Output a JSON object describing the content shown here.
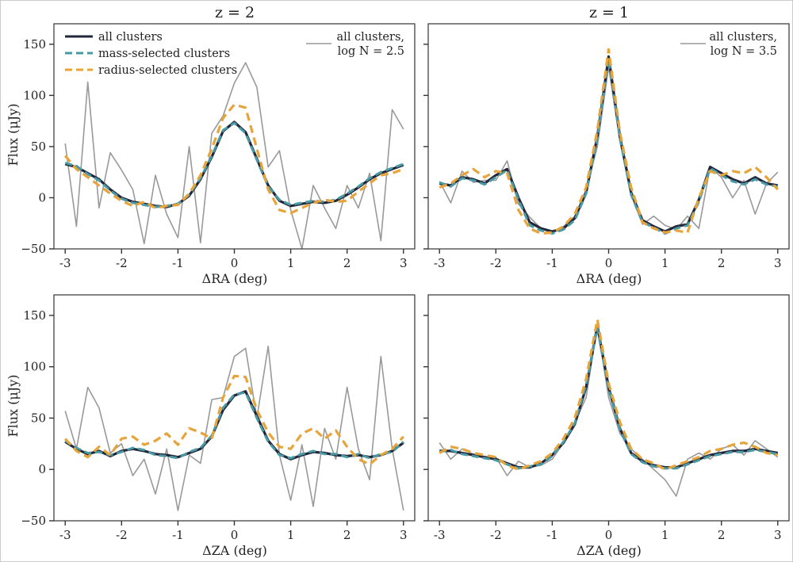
{
  "chart_data": {
    "type": "line",
    "figure_titles": [
      "z = 2",
      "z = 1"
    ],
    "legend": {
      "all": "all clusters",
      "mass": "mass-selected clusters",
      "radius": "radius-selected clusters"
    },
    "series_colors": {
      "noisy": "#999999",
      "all": "#23273a",
      "mass": "#4a9aa5",
      "radius": "#e7a43a"
    },
    "panels": [
      {
        "id": "z2-ra",
        "title": "z = 2",
        "xlabel": "ΔRA (deg)",
        "ylabel": "Flux (μJy)",
        "xlim": [
          -3.2,
          3.2
        ],
        "ylim": [
          -50,
          170
        ],
        "xticks": [
          -3,
          -2,
          -1,
          0,
          1,
          2,
          3
        ],
        "xticklabels": [
          "-3",
          "-2",
          "-1",
          "0",
          "1",
          "2",
          "3"
        ],
        "yticks": [
          -50,
          0,
          50,
          100,
          150
        ],
        "yticklabels": [
          "−50",
          "0",
          "50",
          "100",
          "150"
        ],
        "noisy_label": [
          "all clusters,",
          "log N = 2.5"
        ],
        "x": [
          -3.0,
          -2.8,
          -2.6,
          -2.4,
          -2.2,
          -2.0,
          -1.8,
          -1.6,
          -1.4,
          -1.2,
          -1.0,
          -0.8,
          -0.6,
          -0.4,
          -0.2,
          0.0,
          0.2,
          0.4,
          0.6,
          0.8,
          1.0,
          1.2,
          1.4,
          1.6,
          1.8,
          2.0,
          2.2,
          2.4,
          2.6,
          2.8,
          3.0
        ],
        "series": [
          {
            "name": "all clusters",
            "key": "all",
            "values": [
              33,
              30,
              24,
              18,
              8,
              0,
              -4,
              -6,
              -8,
              -9,
              -6,
              2,
              18,
              40,
              65,
              74,
              64,
              38,
              12,
              -3,
              -8,
              -6,
              -4,
              -5,
              -3,
              3,
              10,
              18,
              24,
              28,
              32
            ]
          },
          {
            "name": "mass-selected clusters",
            "key": "mass",
            "values": [
              34,
              31,
              23,
              17,
              7,
              -1,
              -5,
              -7,
              -9,
              -8,
              -6,
              3,
              19,
              41,
              66,
              73,
              63,
              37,
              11,
              -2,
              -7,
              -5,
              -3,
              -4,
              -2,
              4,
              11,
              19,
              25,
              29,
              33
            ]
          },
          {
            "name": "radius-selected clusters",
            "key": "radius",
            "values": [
              41,
              28,
              20,
              12,
              4,
              -3,
              -8,
              -4,
              -10,
              -8,
              -7,
              4,
              22,
              48,
              78,
              91,
              88,
              48,
              8,
              -12,
              -15,
              -10,
              -5,
              -2,
              -4,
              -3,
              6,
              14,
              22,
              24,
              28
            ]
          },
          {
            "name": "all clusters, log N = 2.5",
            "key": "noisy",
            "values": [
              53,
              -28,
              113,
              -10,
              44,
              27,
              8,
              -45,
              22,
              -16,
              -39,
              50,
              -44,
              63,
              80,
              112,
              132,
              108,
              30,
              46,
              -12,
              -50,
              12,
              -10,
              -30,
              12,
              -10,
              24,
              -42,
              86,
              67
            ]
          }
        ]
      },
      {
        "id": "z1-ra",
        "title": "z = 1",
        "xlabel": "ΔRA (deg)",
        "ylabel": "",
        "xlim": [
          -3.2,
          3.2
        ],
        "ylim": [
          -50,
          170
        ],
        "xticks": [
          -3,
          -2,
          -1,
          0,
          1,
          2,
          3
        ],
        "xticklabels": [
          "-3",
          "-2",
          "-1",
          "0",
          "1",
          "2",
          "3"
        ],
        "yticks": [
          -50,
          0,
          50,
          100,
          150
        ],
        "yticklabels": [
          "",
          "",
          "",
          "",
          ""
        ],
        "noisy_label": [
          "all clusters,",
          "log N = 3.5"
        ],
        "x": [
          -3.0,
          -2.8,
          -2.6,
          -2.4,
          -2.2,
          -2.0,
          -1.8,
          -1.6,
          -1.4,
          -1.2,
          -1.0,
          -0.8,
          -0.6,
          -0.4,
          -0.2,
          0.0,
          0.2,
          0.4,
          0.6,
          0.8,
          1.0,
          1.2,
          1.4,
          1.6,
          1.8,
          2.0,
          2.2,
          2.4,
          2.6,
          2.8,
          3.0
        ],
        "series": [
          {
            "name": "all clusters",
            "key": "all",
            "values": [
              14,
              12,
              20,
              18,
              14,
              22,
              28,
              0,
              -24,
              -30,
              -33,
              -30,
              -20,
              5,
              60,
              138,
              60,
              5,
              -22,
              -28,
              -33,
              -28,
              -26,
              -2,
              30,
              24,
              18,
              14,
              20,
              14,
              12
            ]
          },
          {
            "name": "mass-selected clusters",
            "key": "mass",
            "values": [
              15,
              11,
              19,
              17,
              13,
              20,
              27,
              -2,
              -27,
              -32,
              -35,
              -31,
              -22,
              4,
              58,
              136,
              58,
              3,
              -24,
              -29,
              -35,
              -30,
              -27,
              -4,
              29,
              22,
              16,
              13,
              18,
              13,
              11
            ]
          },
          {
            "name": "radius-selected clusters",
            "key": "radius",
            "values": [
              10,
              14,
              22,
              28,
              20,
              26,
              24,
              -12,
              -30,
              -35,
              -34,
              -28,
              -16,
              10,
              66,
              145,
              64,
              10,
              -24,
              -30,
              -34,
              -32,
              -34,
              0,
              26,
              22,
              26,
              24,
              30,
              20,
              8
            ]
          },
          {
            "name": "all clusters, log N = 3.5",
            "key": "noisy",
            "values": [
              16,
              -5,
              26,
              15,
              17,
              17,
              36,
              -6,
              -19,
              -30,
              -33,
              -28,
              -18,
              8,
              50,
              128,
              55,
              3,
              -26,
              -18,
              -27,
              -31,
              -18,
              -30,
              30,
              20,
              0,
              17,
              -16,
              14,
              25
            ]
          }
        ]
      },
      {
        "id": "z2-za",
        "title": "",
        "xlabel": "ΔZA (deg)",
        "ylabel": "Flux (μJy)",
        "xlim": [
          -3.2,
          3.2
        ],
        "ylim": [
          -50,
          170
        ],
        "xticks": [
          -3,
          -2,
          -1,
          0,
          1,
          2,
          3
        ],
        "xticklabels": [
          "-3",
          "-2",
          "-1",
          "0",
          "1",
          "2",
          "3"
        ],
        "yticks": [
          -50,
          0,
          50,
          100,
          150
        ],
        "yticklabels": [
          "−50",
          "0",
          "50",
          "100",
          "150"
        ],
        "noisy_label": [],
        "x": [
          -3.0,
          -2.8,
          -2.6,
          -2.4,
          -2.2,
          -2.0,
          -1.8,
          -1.6,
          -1.4,
          -1.2,
          -1.0,
          -0.8,
          -0.6,
          -0.4,
          -0.2,
          0.0,
          0.2,
          0.4,
          0.6,
          0.8,
          1.0,
          1.2,
          1.4,
          1.6,
          1.8,
          2.0,
          2.2,
          2.4,
          2.6,
          2.8,
          3.0
        ],
        "series": [
          {
            "name": "all clusters",
            "key": "all",
            "values": [
              27,
              20,
              15,
              18,
              13,
              18,
              20,
              18,
              15,
              14,
              12,
              16,
              20,
              32,
              58,
              72,
              76,
              52,
              28,
              15,
              10,
              14,
              17,
              16,
              14,
              13,
              14,
              12,
              14,
              18,
              26
            ]
          },
          {
            "name": "mass-selected clusters",
            "key": "mass",
            "values": [
              28,
              21,
              16,
              17,
              14,
              17,
              21,
              19,
              14,
              13,
              11,
              17,
              21,
              33,
              60,
              73,
              75,
              50,
              27,
              14,
              11,
              15,
              18,
              15,
              15,
              12,
              15,
              11,
              15,
              17,
              27
            ]
          },
          {
            "name": "radius-selected clusters",
            "key": "radius",
            "values": [
              30,
              18,
              12,
              22,
              14,
              30,
              32,
              24,
              28,
              35,
              24,
              40,
              36,
              30,
              70,
              91,
              90,
              58,
              36,
              22,
              20,
              35,
              40,
              30,
              38,
              22,
              10,
              5,
              14,
              20,
              32
            ]
          },
          {
            "name": "noisy",
            "key": "noisy",
            "values": [
              57,
              20,
              80,
              60,
              16,
              25,
              -6,
              10,
              -24,
              20,
              -40,
              14,
              6,
              68,
              70,
              110,
              118,
              50,
              120,
              14,
              -30,
              24,
              -36,
              40,
              10,
              80,
              20,
              -10,
              110,
              20,
              -40
            ]
          }
        ]
      },
      {
        "id": "z1-za",
        "title": "",
        "xlabel": "ΔZA (deg)",
        "ylabel": "",
        "xlim": [
          -3.2,
          3.2
        ],
        "ylim": [
          -50,
          170
        ],
        "xticks": [
          -3,
          -2,
          -1,
          0,
          1,
          2,
          3
        ],
        "xticklabels": [
          "-3",
          "-2",
          "-1",
          "0",
          "1",
          "2",
          "3"
        ],
        "yticks": [
          -50,
          0,
          50,
          100,
          150
        ],
        "yticklabels": [
          "",
          "",
          "",
          "",
          ""
        ],
        "noisy_label": [],
        "x": [
          -3.0,
          -2.8,
          -2.6,
          -2.4,
          -2.2,
          -2.0,
          -1.8,
          -1.6,
          -1.4,
          -1.2,
          -1.0,
          -0.8,
          -0.6,
          -0.4,
          -0.2,
          0.0,
          0.2,
          0.4,
          0.6,
          0.8,
          1.0,
          1.2,
          1.4,
          1.6,
          1.8,
          2.0,
          2.2,
          2.4,
          2.6,
          2.8,
          3.0
        ],
        "series": [
          {
            "name": "all clusters",
            "key": "all",
            "values": [
              18,
              18,
              16,
              14,
              12,
              10,
              6,
              2,
              2,
              6,
              14,
              26,
              44,
              80,
              140,
              80,
              40,
              16,
              8,
              4,
              2,
              2,
              6,
              10,
              14,
              16,
              18,
              18,
              20,
              18,
              16
            ]
          },
          {
            "name": "mass-selected clusters",
            "key": "mass",
            "values": [
              17,
              19,
              15,
              13,
              11,
              9,
              5,
              1,
              3,
              5,
              13,
              27,
              45,
              82,
              138,
              78,
              39,
              15,
              7,
              3,
              1,
              1,
              5,
              9,
              13,
              15,
              17,
              17,
              19,
              17,
              15
            ]
          },
          {
            "name": "radius-selected clusters",
            "key": "radius",
            "values": [
              16,
              22,
              20,
              16,
              14,
              12,
              4,
              0,
              4,
              8,
              16,
              30,
              50,
              88,
              146,
              84,
              46,
              20,
              10,
              6,
              0,
              4,
              8,
              12,
              18,
              20,
              24,
              26,
              22,
              16,
              14
            ]
          },
          {
            "name": "noisy",
            "key": "noisy",
            "values": [
              26,
              10,
              20,
              15,
              12,
              12,
              -6,
              8,
              2,
              4,
              10,
              26,
              45,
              70,
              140,
              70,
              35,
              20,
              10,
              0,
              -10,
              -26,
              10,
              16,
              10,
              20,
              24,
              14,
              28,
              20,
              12
            ]
          }
        ]
      }
    ]
  }
}
